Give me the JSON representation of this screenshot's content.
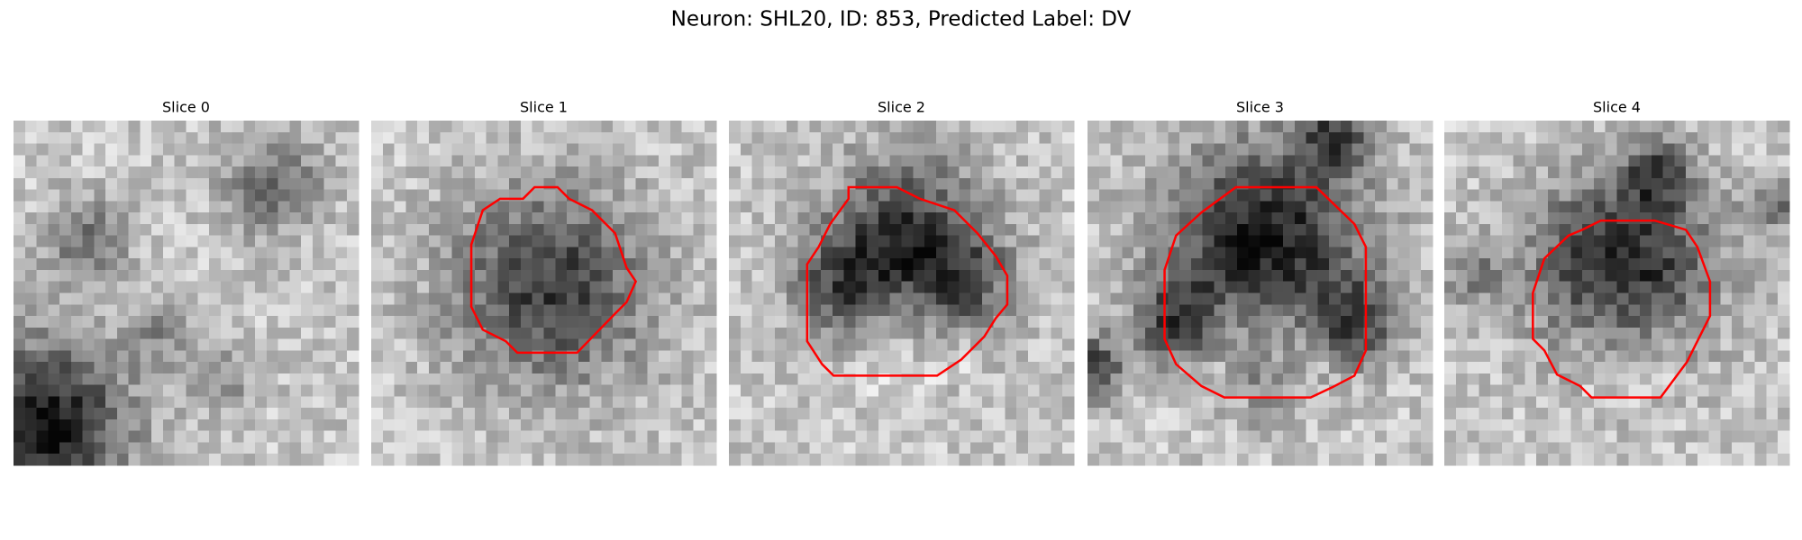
{
  "title": "Neuron: SHL20, ID: 853, Predicted Label: DV",
  "panels": [
    {
      "title": "Slice 0"
    },
    {
      "title": "Slice 1"
    },
    {
      "title": "Slice 2"
    },
    {
      "title": "Slice 3"
    },
    {
      "title": "Slice 4"
    }
  ]
}
